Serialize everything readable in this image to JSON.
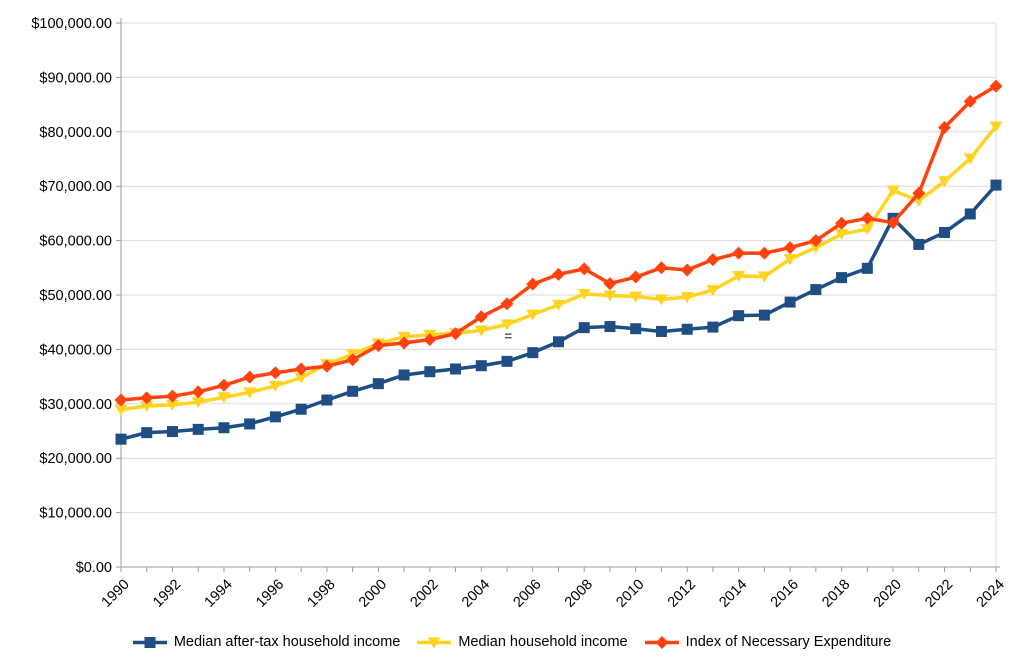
{
  "chart_data": {
    "type": "line",
    "title": "",
    "xlabel": "",
    "ylabel": "",
    "grid": true,
    "legend_position": "bottom",
    "x": [
      1990,
      1991,
      1992,
      1993,
      1994,
      1995,
      1996,
      1997,
      1998,
      1999,
      2000,
      2001,
      2002,
      2003,
      2004,
      2005,
      2006,
      2007,
      2008,
      2009,
      2010,
      2011,
      2012,
      2013,
      2014,
      2015,
      2016,
      2017,
      2018,
      2019,
      2020,
      2021,
      2022,
      2023,
      2024
    ],
    "x_tick_labels": [
      "1990",
      "1992",
      "1994",
      "1996",
      "1998",
      "2000",
      "2002",
      "2004",
      "2006",
      "2008",
      "2010",
      "2012",
      "2014",
      "2016",
      "2018",
      "2020",
      "2022",
      "2024"
    ],
    "ylim": [
      0,
      100000
    ],
    "y_tick_interval": 10000,
    "y_tick_labels": [
      "$0.00",
      "$10,000.00",
      "$20,000.00",
      "$30,000.00",
      "$40,000.00",
      "$50,000.00",
      "$60,000.00",
      "$70,000.00",
      "$80,000.00",
      "$90,000.00",
      "$100,000.00"
    ],
    "series": [
      {
        "name": "Median after-tax household income",
        "color": "#1F4E85",
        "marker": "square",
        "values": [
          23500,
          24700,
          24900,
          25300,
          25600,
          26300,
          27600,
          29000,
          30700,
          32300,
          33700,
          35300,
          35900,
          36400,
          37000,
          37800,
          39400,
          41400,
          44000,
          44200,
          43800,
          43300,
          43700,
          44100,
          46200,
          46300,
          48700,
          51000,
          53200,
          54900,
          64100,
          59300,
          61500,
          64900,
          70200
        ]
      },
      {
        "name": "Median household income",
        "color": "#FFD320",
        "marker": "triangle-down",
        "values": [
          28900,
          29600,
          29800,
          30300,
          31200,
          32100,
          33300,
          34800,
          37300,
          39100,
          41100,
          42300,
          42700,
          43000,
          43500,
          44600,
          46400,
          48200,
          50200,
          49900,
          49700,
          49200,
          49600,
          50900,
          53500,
          53400,
          56600,
          58700,
          61200,
          62100,
          69200,
          67300,
          70900,
          75100,
          81000
        ]
      },
      {
        "name": "Index of Necessary Expenditure",
        "color": "#FF420E",
        "marker": "diamond",
        "values": [
          30700,
          31100,
          31400,
          32200,
          33400,
          34900,
          35700,
          36400,
          36900,
          38100,
          40700,
          41200,
          41800,
          42900,
          46000,
          48400,
          52000,
          53800,
          54800,
          52100,
          53300,
          55000,
          54600,
          56500,
          57700,
          57700,
          58700,
          60000,
          63200,
          64100,
          63300,
          68700,
          80800,
          85600,
          88400
        ]
      }
    ],
    "annotations": [
      {
        "text": "=",
        "x": 2005.05,
        "y": 42600,
        "color": "#555555"
      }
    ],
    "axis_color": "#9b9b9b",
    "grid_color": "#d9d9d9",
    "label_color": "#000000"
  }
}
